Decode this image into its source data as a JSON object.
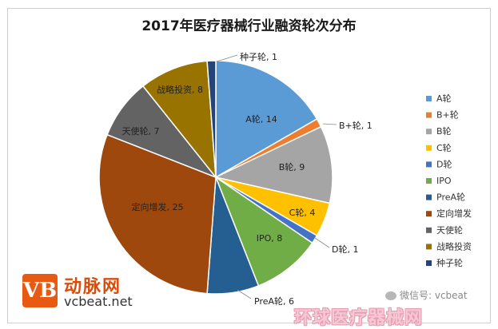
{
  "title": "2017年医疗器械行业融资轮次分布",
  "logo": {
    "mark": "VB",
    "name_cn": "动脉网",
    "name_en": "vcbeat.net"
  },
  "wechat_label": "微信号: vcbeat",
  "watermark": "环球医疗器械网",
  "colors": {
    "A轮": "#5b9bd5",
    "B+轮": "#ed7d31",
    "B轮": "#a5a5a5",
    "C轮": "#ffc000",
    "D轮": "#4472c4",
    "IPO": "#70ad47",
    "PreA轮": "#255e91",
    "定向增发": "#9e480e",
    "天使轮": "#636363",
    "战略投资": "#997300",
    "种子轮": "#264478"
  },
  "chart_data": {
    "type": "pie",
    "title": "2017年医疗器械行业融资轮次分布",
    "categories": [
      "A轮",
      "B+轮",
      "B轮",
      "C轮",
      "D轮",
      "IPO",
      "PreA轮",
      "定向增发",
      "天使轮",
      "战略投资",
      "种子轮"
    ],
    "values": [
      14,
      1,
      9,
      4,
      1,
      8,
      6,
      25,
      7,
      8,
      1
    ],
    "data_labels": [
      "A轮, 14",
      "B+轮, 1",
      "B轮, 9",
      "C轮, 4",
      "D轮, 1",
      "IPO, 8",
      "PreA轮, 6",
      "定向增发, 25",
      "天使轮, 7",
      "战略投资, 8",
      "种子轮, 1"
    ],
    "legend": [
      "A轮",
      "B+轮",
      "B轮",
      "C轮",
      "D轮",
      "IPO",
      "PreA轮",
      "定向增发",
      "天使轮",
      "战略投资",
      "种子轮"
    ],
    "legend_position": "right",
    "start_angle": "12 o'clock, clockwise"
  }
}
